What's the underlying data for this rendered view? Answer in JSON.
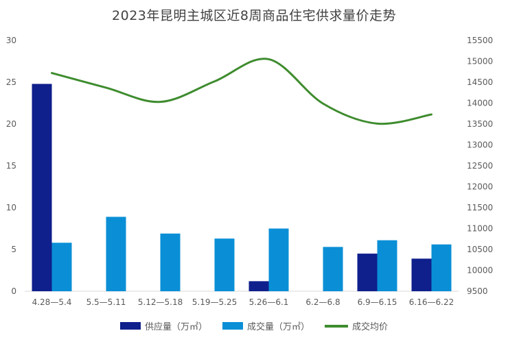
{
  "chart_data": {
    "type": "bar",
    "title": "2023年昆明主城区近8周商品住宅供求量价走势",
    "categories": [
      "4.28—5.4",
      "5.5—5.11",
      "5.12—5.18",
      "5.19—5.25",
      "5.26—6.1",
      "6.2—6.8",
      "6.9—6.15",
      "6.16—6.22"
    ],
    "series": [
      {
        "name": "供应量（万㎡）",
        "kind": "bar",
        "axis": "left",
        "color": "#0F1F8C",
        "values": [
          24.8,
          0,
          0,
          0,
          1.2,
          0,
          4.5,
          3.9
        ]
      },
      {
        "name": "成交量（万㎡）",
        "kind": "bar",
        "axis": "left",
        "color": "#0A8FD6",
        "values": [
          5.8,
          8.9,
          6.9,
          6.3,
          7.5,
          5.3,
          6.1,
          5.6
        ]
      },
      {
        "name": "成交均价",
        "kind": "line",
        "axis": "right",
        "color": "#3E8C2E",
        "values": [
          14720,
          14370,
          14030,
          14520,
          15050,
          13990,
          13510,
          13730
        ]
      }
    ],
    "ylim_left": [
      0,
      30
    ],
    "yticks_left": [
      "0",
      "5",
      "10",
      "15",
      "20",
      "25",
      "30"
    ],
    "ylim_right": [
      9500,
      15500
    ],
    "yticks_right": [
      "9500",
      "10000",
      "10500",
      "11000",
      "11500",
      "12000",
      "12500",
      "13000",
      "13500",
      "14000",
      "14500",
      "15000",
      "15500"
    ],
    "grid": false,
    "legend": "bottom"
  }
}
